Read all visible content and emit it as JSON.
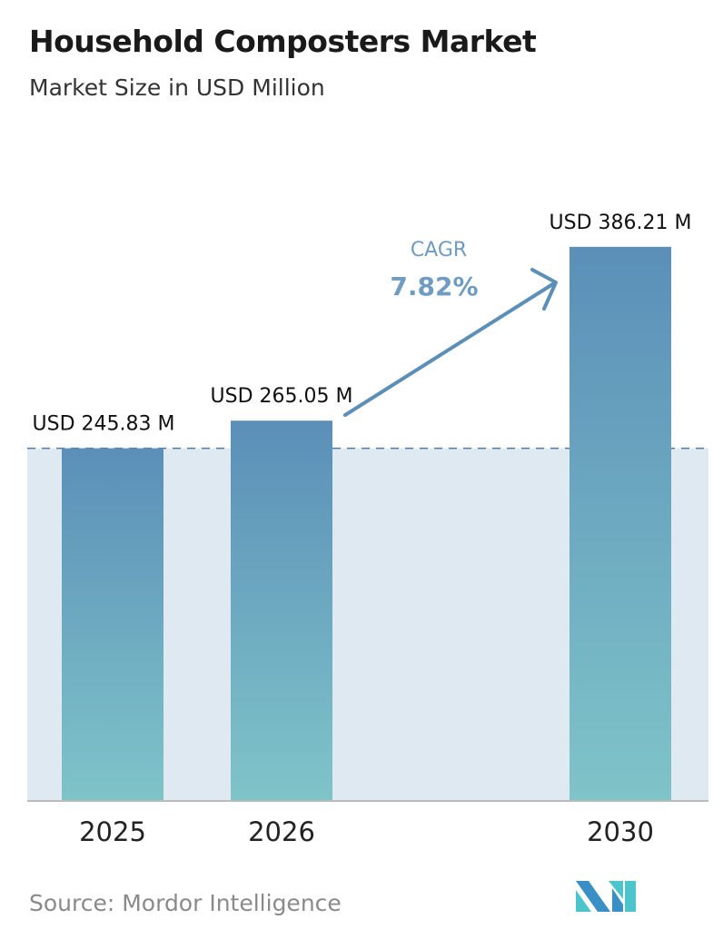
{
  "title": "Household Composters Market",
  "subtitle": "Market Size in USD Million",
  "source": "Source: Mordor Intelligence",
  "chart_data": {
    "type": "bar",
    "categories": [
      "2025",
      "2026",
      "2030"
    ],
    "values": [
      245.83,
      265.05,
      386.21
    ],
    "data_labels": [
      "USD 245.83 M",
      "USD 265.05 M",
      "USD 386.21 M"
    ],
    "annotation": {
      "label": "CAGR",
      "value": "7.82%"
    },
    "grid": false,
    "colors": {
      "bar_top": "#5b8fb8",
      "bar_bottom": "#7fc4c9",
      "band": "#dfe9f1",
      "arrow": "#5b8fb8"
    }
  }
}
